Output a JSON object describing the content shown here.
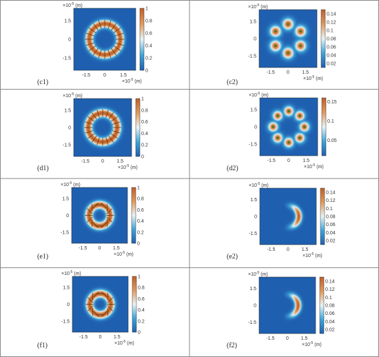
{
  "panels": [
    {
      "id": "c1",
      "label": "(c1)",
      "kind": "ring",
      "ring_center_r": 1.25,
      "ring_width": 0.45,
      "peak": 1,
      "cbar_ticks": [
        "1",
        "0.8",
        "0.6",
        "0.4",
        "0.2",
        "0"
      ],
      "cbar_max": 1,
      "y_ticks": [
        "1.5",
        "0",
        "-1.5"
      ],
      "x_ticks": [
        "-1.5",
        "0",
        "1.5"
      ],
      "unit": "(m)",
      "exp": "×10",
      "exp_pow": "-5",
      "arrow_pattern": "radial"
    },
    {
      "id": "c2",
      "label": "(c2)",
      "kind": "lobes",
      "lobes": 6,
      "lobe_r": 1.25,
      "lobe_size": 0.32,
      "cbar_ticks": [
        "0.14",
        "0.12",
        "0.1",
        "0.08",
        "0.06",
        "0.04",
        "0.02"
      ],
      "cbar_max": 0.15,
      "cbar_min": 0.01,
      "y_ticks": [
        "1.5",
        "0",
        "-1.5"
      ],
      "x_ticks": [
        "-1.5",
        "0",
        "1.5"
      ],
      "unit": "(m)",
      "exp": "×10",
      "exp_pow": "-5"
    },
    {
      "id": "d1",
      "label": "(d1)",
      "kind": "ring",
      "ring_center_r": 1.25,
      "ring_width": 0.5,
      "peak": 1,
      "cbar_ticks": [
        "1",
        "0.8",
        "0.6",
        "0.4",
        "0.2",
        "0"
      ],
      "cbar_max": 1,
      "y_ticks": [
        "1.5",
        "0",
        "-1.5"
      ],
      "x_ticks": [
        "-1.5",
        "0",
        "1.5"
      ],
      "unit": "(m)",
      "exp": "×10",
      "exp_pow": "-5",
      "arrow_pattern": "radial"
    },
    {
      "id": "d2",
      "label": "(d2)",
      "kind": "lobes",
      "lobes": 8,
      "lobe_r": 1.35,
      "lobe_size": 0.28,
      "cbar_ticks": [
        "0.15",
        "0.1",
        "0.05"
      ],
      "cbar_max": 0.16,
      "cbar_min": 0.01,
      "y_ticks": [
        "1.5",
        "0",
        "-1.5"
      ],
      "x_ticks": [
        "-1.5",
        "0",
        "1.5"
      ],
      "unit": "(m)",
      "exp": "×10",
      "exp_pow": "-5"
    },
    {
      "id": "e1",
      "label": "(e1)",
      "kind": "ring",
      "ring_center_r": 0.95,
      "ring_width": 0.5,
      "peak": 1,
      "cbar_ticks": [
        "1",
        "0.8",
        "0.6",
        "0.4",
        "0.2",
        "0"
      ],
      "cbar_max": 1,
      "y_ticks": [
        "1.5",
        "0",
        "-1.5"
      ],
      "x_ticks": [
        "-1.5",
        "0",
        "1.5"
      ],
      "unit": "(m)",
      "exp": "×10",
      "exp_pow": "-5",
      "arrow_pattern": "tangential"
    },
    {
      "id": "e2",
      "label": "(e2)",
      "kind": "crescent",
      "crescent_r": 0.95,
      "crescent_w": 0.4,
      "cbar_ticks": [
        "0.14",
        "0.12",
        "0.1",
        "0.08",
        "0.06",
        "0.04",
        "0.02"
      ],
      "cbar_max": 0.15,
      "cbar_min": 0.01,
      "y_ticks": [
        "1.5",
        "0",
        "-1.5"
      ],
      "x_ticks": [
        "-1.5",
        "0",
        "1.5"
      ],
      "unit": "(m)",
      "exp": "×10",
      "exp_pow": "-5"
    },
    {
      "id": "f1",
      "label": "(f1)",
      "kind": "ring",
      "ring_center_r": 0.95,
      "ring_width": 0.5,
      "peak": 1,
      "cbar_ticks": [
        "1",
        "0.8",
        "0.6",
        "0.4",
        "0.2",
        "0"
      ],
      "cbar_max": 1,
      "y_ticks": [
        "1.5",
        "0",
        "-1.5"
      ],
      "x_ticks": [
        "-1.5",
        "0",
        "1.5"
      ],
      "unit": "(m)",
      "exp": "×10",
      "exp_pow": "-5",
      "arrow_pattern": "tangential"
    },
    {
      "id": "f2",
      "label": "(f2)",
      "kind": "crescent",
      "crescent_r": 0.95,
      "crescent_w": 0.4,
      "cbar_ticks": [
        "0.14",
        "0.12",
        "0.1",
        "0.08",
        "0.06",
        "0.04",
        "0.02"
      ],
      "cbar_max": 0.15,
      "cbar_min": 0.01,
      "y_ticks": [
        "1.5",
        "0",
        "-1.5"
      ],
      "x_ticks": [
        "-1.5",
        "0",
        "1.5"
      ],
      "unit": "(m)",
      "exp": "×10",
      "exp_pow": "-5"
    }
  ],
  "chart_data": {
    "type": "heatmap",
    "x_range": [
      -2.5,
      2.5
    ],
    "y_range": [
      -2.5,
      2.5
    ],
    "axis_unit": "(m)",
    "axis_scale": "×10^-5",
    "colormap": [
      "#1f5fb0",
      "#3fa6d9",
      "#e9f3f5",
      "#e09a5e",
      "#c0602a"
    ],
    "panels": [
      "(c1)",
      "(c2)",
      "(d1)",
      "(d2)",
      "(e1)",
      "(e2)",
      "(f1)",
      "(f2)"
    ]
  }
}
